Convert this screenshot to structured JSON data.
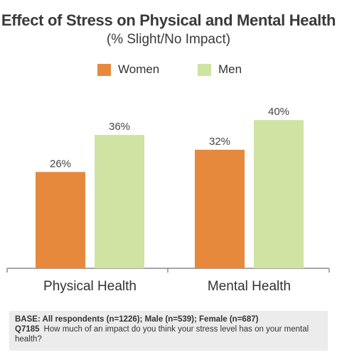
{
  "chart_data": {
    "type": "bar",
    "title": "Effect of Stress on Physical and Mental Health",
    "subtitle": "(% Slight/No Impact)",
    "categories": [
      "Physical Health",
      "Mental Health"
    ],
    "series": [
      {
        "name": "Women",
        "values": [
          26,
          32
        ],
        "labels": [
          "26%",
          "32%"
        ],
        "color": "#e6893d"
      },
      {
        "name": "Men",
        "values": [
          36,
          40
        ],
        "labels": [
          "36%",
          "40%"
        ],
        "color": "#cfe3a3"
      }
    ],
    "ylim": [
      0,
      50
    ],
    "grid": false,
    "legend": "top-center"
  },
  "footer": {
    "base": "BASE: All respondents (n=1226); Male (n=539); Female (n=687)",
    "question_id": "Q7185",
    "question": "How much of an impact do you think your stress level has on your mental health?"
  }
}
